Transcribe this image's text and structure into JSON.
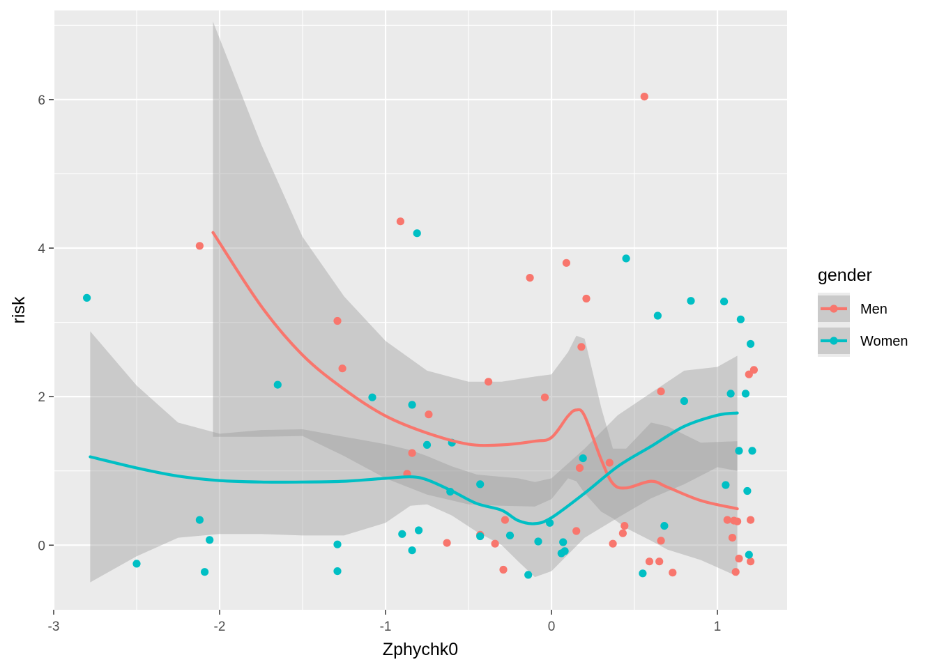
{
  "chart_data": {
    "type": "scatter",
    "xlabel": "Zphychk0",
    "ylabel": "risk",
    "xlim": [
      -3,
      1.42
    ],
    "ylim": [
      -0.87,
      7.2
    ],
    "x_ticks": [
      -3,
      -2,
      -1,
      0,
      1
    ],
    "x_tick_labels": [
      "-3",
      "-2",
      "-1",
      "0",
      "1"
    ],
    "y_ticks": [
      0,
      2,
      4,
      6
    ],
    "y_tick_labels": [
      "0",
      "2",
      "4",
      "6"
    ],
    "grid": true,
    "panel_background": "#ebebeb",
    "legend": {
      "title": "gender",
      "position": "right",
      "entries": [
        "Men",
        "Women"
      ]
    },
    "series": [
      {
        "name": "Men",
        "color": "#F8766D",
        "points": [
          [
            -2.12,
            4.03
          ],
          [
            -1.29,
            3.02
          ],
          [
            -1.26,
            2.38
          ],
          [
            -0.91,
            4.36
          ],
          [
            -0.87,
            0.96
          ],
          [
            -0.84,
            1.24
          ],
          [
            -0.74,
            1.76
          ],
          [
            -0.63,
            0.03
          ],
          [
            -0.43,
            0.14
          ],
          [
            -0.38,
            2.2
          ],
          [
            -0.34,
            0.02
          ],
          [
            -0.29,
            -0.33
          ],
          [
            -0.28,
            0.34
          ],
          [
            -0.13,
            3.6
          ],
          [
            -0.04,
            1.99
          ],
          [
            0.09,
            3.8
          ],
          [
            0.15,
            0.19
          ],
          [
            0.17,
            1.04
          ],
          [
            0.18,
            2.67
          ],
          [
            0.21,
            3.32
          ],
          [
            0.35,
            1.11
          ],
          [
            0.37,
            0.02
          ],
          [
            0.43,
            0.16
          ],
          [
            0.44,
            0.26
          ],
          [
            0.56,
            6.04
          ],
          [
            0.59,
            -0.22
          ],
          [
            0.65,
            -0.22
          ],
          [
            0.66,
            2.07
          ],
          [
            0.66,
            0.06
          ],
          [
            0.73,
            -0.37
          ],
          [
            1.06,
            0.34
          ],
          [
            1.09,
            0.1
          ],
          [
            1.1,
            0.33
          ],
          [
            1.11,
            -0.36
          ],
          [
            1.12,
            0.32
          ],
          [
            1.13,
            -0.18
          ],
          [
            1.19,
            2.3
          ],
          [
            1.2,
            0.34
          ],
          [
            1.2,
            -0.22
          ],
          [
            1.22,
            2.36
          ]
        ],
        "smooth": [
          [
            -2.04,
            4.21
          ],
          [
            -1.75,
            3.22
          ],
          [
            -1.5,
            2.56
          ],
          [
            -1.25,
            2.1
          ],
          [
            -1.0,
            1.74
          ],
          [
            -0.75,
            1.51
          ],
          [
            -0.5,
            1.36
          ],
          [
            -0.3,
            1.35
          ],
          [
            -0.1,
            1.4
          ],
          [
            0.0,
            1.45
          ],
          [
            0.1,
            1.74
          ],
          [
            0.15,
            1.82
          ],
          [
            0.2,
            1.74
          ],
          [
            0.3,
            1.15
          ],
          [
            0.37,
            0.83
          ],
          [
            0.45,
            0.77
          ],
          [
            0.6,
            0.86
          ],
          [
            0.7,
            0.78
          ],
          [
            0.9,
            0.6
          ],
          [
            1.12,
            0.49
          ]
        ],
        "band_upper": [
          [
            -2.04,
            7.05
          ],
          [
            -1.75,
            5.4
          ],
          [
            -1.5,
            4.15
          ],
          [
            -1.25,
            3.35
          ],
          [
            -1.0,
            2.75
          ],
          [
            -0.75,
            2.35
          ],
          [
            -0.5,
            2.2
          ],
          [
            -0.3,
            2.2
          ],
          [
            -0.1,
            2.27
          ],
          [
            0.0,
            2.3
          ],
          [
            0.1,
            2.6
          ],
          [
            0.15,
            2.82
          ],
          [
            0.2,
            2.78
          ],
          [
            0.3,
            1.85
          ],
          [
            0.37,
            1.3
          ],
          [
            0.45,
            1.3
          ],
          [
            0.6,
            1.65
          ],
          [
            0.7,
            1.6
          ],
          [
            0.9,
            1.38
          ],
          [
            1.12,
            1.4
          ]
        ],
        "band_lower": [
          [
            -2.04,
            1.46
          ],
          [
            -1.75,
            1.46
          ],
          [
            -1.5,
            1.47
          ],
          [
            -1.25,
            1.2
          ],
          [
            -1.0,
            0.9
          ],
          [
            -0.75,
            0.68
          ],
          [
            -0.5,
            0.55
          ],
          [
            -0.3,
            0.53
          ],
          [
            -0.1,
            0.52
          ],
          [
            0.0,
            0.62
          ],
          [
            0.1,
            0.9
          ],
          [
            0.15,
            0.86
          ],
          [
            0.2,
            0.7
          ],
          [
            0.3,
            0.45
          ],
          [
            0.37,
            0.36
          ],
          [
            0.45,
            0.23
          ],
          [
            0.6,
            0.06
          ],
          [
            0.7,
            -0.06
          ],
          [
            0.9,
            -0.2
          ],
          [
            1.12,
            -0.42
          ]
        ]
      },
      {
        "name": "Women",
        "color": "#00BFC4",
        "points": [
          [
            -2.8,
            3.33
          ],
          [
            -2.5,
            -0.25
          ],
          [
            -2.12,
            0.34
          ],
          [
            -2.09,
            -0.36
          ],
          [
            -2.06,
            0.07
          ],
          [
            -1.65,
            2.16
          ],
          [
            -1.29,
            0.01
          ],
          [
            -1.29,
            -0.35
          ],
          [
            -1.08,
            1.99
          ],
          [
            -0.9,
            0.15
          ],
          [
            -0.84,
            1.89
          ],
          [
            -0.84,
            -0.07
          ],
          [
            -0.81,
            4.2
          ],
          [
            -0.8,
            0.2
          ],
          [
            -0.75,
            1.35
          ],
          [
            -0.61,
            0.72
          ],
          [
            -0.6,
            1.38
          ],
          [
            -0.43,
            0.82
          ],
          [
            -0.43,
            0.12
          ],
          [
            -0.25,
            0.13
          ],
          [
            -0.14,
            -0.4
          ],
          [
            -0.08,
            0.05
          ],
          [
            -0.01,
            0.3
          ],
          [
            0.06,
            -0.11
          ],
          [
            0.07,
            0.04
          ],
          [
            0.08,
            -0.08
          ],
          [
            0.19,
            1.17
          ],
          [
            0.45,
            3.86
          ],
          [
            0.55,
            -0.38
          ],
          [
            0.64,
            3.09
          ],
          [
            0.68,
            0.26
          ],
          [
            0.8,
            1.94
          ],
          [
            0.84,
            3.29
          ],
          [
            1.04,
            3.28
          ],
          [
            1.05,
            0.81
          ],
          [
            1.08,
            2.04
          ],
          [
            1.13,
            1.27
          ],
          [
            1.14,
            3.04
          ],
          [
            1.17,
            2.04
          ],
          [
            1.18,
            0.73
          ],
          [
            1.19,
            -0.13
          ],
          [
            1.2,
            2.71
          ],
          [
            1.21,
            1.27
          ]
        ],
        "smooth": [
          [
            -2.78,
            1.19
          ],
          [
            -2.5,
            1.04
          ],
          [
            -2.25,
            0.93
          ],
          [
            -2.0,
            0.87
          ],
          [
            -1.75,
            0.85
          ],
          [
            -1.5,
            0.85
          ],
          [
            -1.25,
            0.86
          ],
          [
            -1.0,
            0.9
          ],
          [
            -0.85,
            0.92
          ],
          [
            -0.75,
            0.88
          ],
          [
            -0.6,
            0.73
          ],
          [
            -0.45,
            0.56
          ],
          [
            -0.3,
            0.47
          ],
          [
            -0.2,
            0.33
          ],
          [
            -0.1,
            0.29
          ],
          [
            0.0,
            0.37
          ],
          [
            0.2,
            0.7
          ],
          [
            0.4,
            1.06
          ],
          [
            0.6,
            1.33
          ],
          [
            0.8,
            1.6
          ],
          [
            1.0,
            1.75
          ],
          [
            1.12,
            1.78
          ]
        ],
        "band_upper": [
          [
            -2.78,
            2.88
          ],
          [
            -2.5,
            2.15
          ],
          [
            -2.25,
            1.65
          ],
          [
            -2.0,
            1.5
          ],
          [
            -1.75,
            1.55
          ],
          [
            -1.5,
            1.56
          ],
          [
            -1.25,
            1.46
          ],
          [
            -1.0,
            1.36
          ],
          [
            -0.85,
            1.28
          ],
          [
            -0.75,
            1.2
          ],
          [
            -0.6,
            1.06
          ],
          [
            -0.45,
            0.95
          ],
          [
            -0.3,
            0.92
          ],
          [
            -0.2,
            0.9
          ],
          [
            -0.1,
            0.85
          ],
          [
            0.0,
            0.9
          ],
          [
            0.2,
            1.3
          ],
          [
            0.4,
            1.75
          ],
          [
            0.6,
            2.05
          ],
          [
            0.8,
            2.35
          ],
          [
            1.0,
            2.4
          ],
          [
            1.12,
            2.55
          ]
        ],
        "band_lower": [
          [
            -2.78,
            -0.5
          ],
          [
            -2.5,
            -0.15
          ],
          [
            -2.25,
            0.1
          ],
          [
            -2.0,
            0.15
          ],
          [
            -1.75,
            0.15
          ],
          [
            -1.5,
            0.13
          ],
          [
            -1.25,
            0.13
          ],
          [
            -1.0,
            0.3
          ],
          [
            -0.85,
            0.53
          ],
          [
            -0.75,
            0.55
          ],
          [
            -0.6,
            0.4
          ],
          [
            -0.45,
            0.18
          ],
          [
            -0.3,
            0.0
          ],
          [
            -0.2,
            -0.22
          ],
          [
            -0.1,
            -0.43
          ],
          [
            0.0,
            -0.35
          ],
          [
            0.2,
            0.1
          ],
          [
            0.4,
            0.37
          ],
          [
            0.6,
            0.63
          ],
          [
            0.8,
            0.82
          ],
          [
            1.0,
            1.05
          ],
          [
            1.12,
            1.0
          ]
        ]
      }
    ]
  }
}
